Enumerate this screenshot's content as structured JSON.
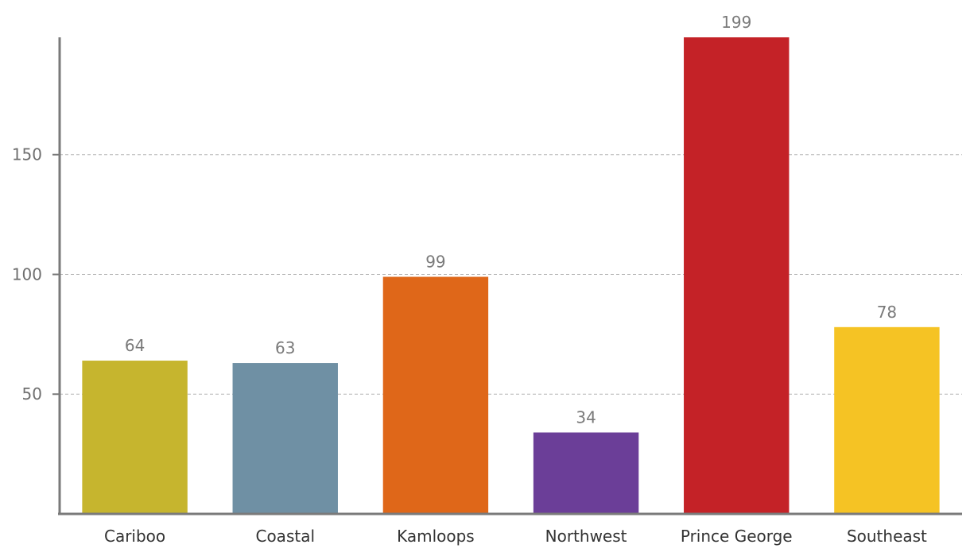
{
  "chart_data": {
    "type": "bar",
    "categories": [
      "Cariboo",
      "Coastal",
      "Kamloops",
      "Northwest",
      "Prince George",
      "Southeast"
    ],
    "values": [
      64,
      63,
      99,
      34,
      199,
      78
    ],
    "colors": [
      "#c6b52e",
      "#6f90a4",
      "#df6719",
      "#6b3e98",
      "#c42227",
      "#f5c324"
    ],
    "yticks": [
      50,
      100,
      150
    ],
    "ylim": [
      0,
      199
    ],
    "grid": true,
    "title": "",
    "xlabel": "",
    "ylabel": ""
  }
}
